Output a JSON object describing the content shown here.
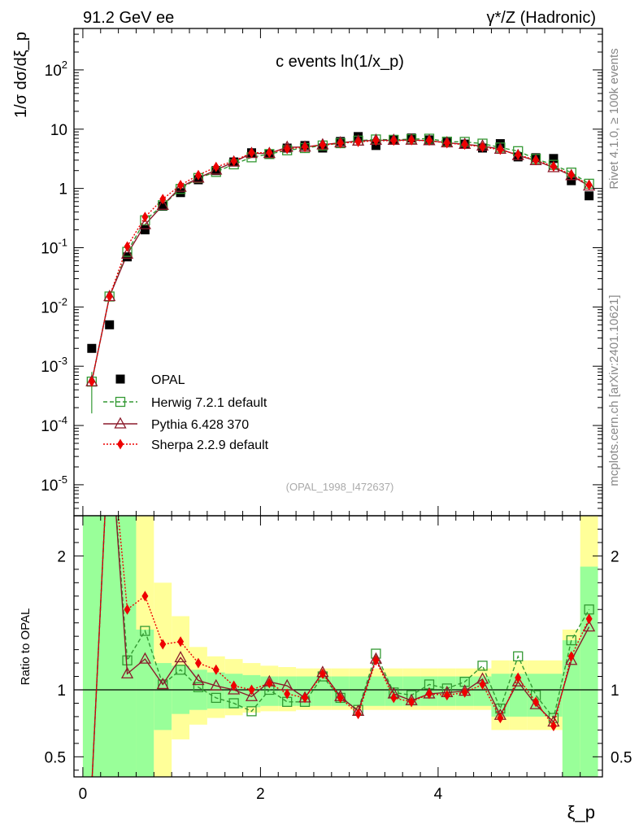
{
  "header": {
    "left": "91.2 GeV ee",
    "right": "γ*/Z (Hadronic)"
  },
  "side_labels": {
    "rivet": "Rivet 4.1.0, ≥ 100k events",
    "mcplots": "mcplots.cern.ch [arXiv:2401.10621]"
  },
  "colors": {
    "data": "#000000",
    "herwig": "#339933",
    "pythia": "#8b1a2b",
    "sherpa": "#ee0000",
    "band_inner": "#99ff99",
    "band_outer": "#ffff99"
  },
  "chart_data": [
    {
      "type": "scatter",
      "title": "c events ln(1/x_p)",
      "ylabel": "1/σ dσ/dξ_p",
      "xlabel": "ξ_p",
      "yscale": "log",
      "xlim": [
        -0.1,
        5.85
      ],
      "ylim": [
        3e-06,
        500
      ],
      "x_ticks": [
        0,
        2,
        4
      ],
      "y_ticks": [
        {
          "value": 1e-05,
          "label": "10^-5"
        },
        {
          "value": 0.0001,
          "label": "10^-4"
        },
        {
          "value": 0.001,
          "label": "10^-3"
        },
        {
          "value": 0.01,
          "label": "10^-2"
        },
        {
          "value": 0.1,
          "label": "10^-1"
        },
        {
          "value": 1,
          "label": "1"
        },
        {
          "value": 10,
          "label": "10"
        },
        {
          "value": 100,
          "label": "10^2"
        }
      ],
      "x": [
        0.1,
        0.3,
        0.5,
        0.7,
        0.9,
        1.1,
        1.3,
        1.5,
        1.7,
        1.9,
        2.1,
        2.3,
        2.5,
        2.7,
        2.9,
        3.1,
        3.3,
        3.5,
        3.7,
        3.9,
        4.1,
        4.3,
        4.5,
        4.7,
        4.9,
        5.1,
        5.3,
        5.5,
        5.7
      ],
      "series": [
        {
          "name": "OPAL",
          "style": "filled-square",
          "values": [
            0.002,
            0.005,
            0.07,
            0.2,
            0.5,
            0.85,
            1.4,
            2.0,
            2.8,
            4.0,
            3.8,
            4.8,
            5.3,
            4.8,
            6.2,
            7.5,
            5.3,
            6.7,
            7.1,
            6.6,
            6.0,
            5.6,
            4.8,
            5.7,
            3.4,
            3.3,
            3.2,
            1.35,
            0.75
          ]
        },
        {
          "name": "Herwig 7.2.1 default",
          "style": "open-square dashed",
          "values": [
            0.00055,
            0.015,
            0.085,
            0.29,
            0.52,
            0.98,
            1.5,
            1.9,
            2.55,
            3.35,
            3.8,
            4.4,
            4.8,
            5.3,
            5.8,
            6.4,
            6.7,
            6.6,
            6.8,
            6.9,
            6.15,
            6.1,
            5.7,
            4.9,
            4.25,
            3.15,
            2.5,
            1.85,
            1.2
          ]
        },
        {
          "name": "Pythia 6.428 370",
          "style": "open-triangle solid",
          "values": [
            0.00055,
            0.015,
            0.078,
            0.245,
            0.52,
            1.05,
            1.5,
            2.05,
            2.8,
            3.9,
            3.9,
            4.95,
            5.0,
            5.45,
            5.9,
            6.3,
            6.5,
            6.5,
            6.55,
            6.4,
            5.9,
            5.55,
            5.2,
            4.6,
            3.6,
            2.95,
            2.25,
            1.65,
            1.1
          ]
        },
        {
          "name": "Sherpa 2.2.9 default",
          "style": "filled-diamond dotted",
          "values": [
            0.00055,
            0.015,
            0.105,
            0.33,
            0.66,
            1.14,
            1.68,
            2.3,
            2.9,
            4.0,
            4.0,
            4.65,
            5.0,
            5.4,
            5.8,
            6.1,
            6.4,
            6.4,
            6.5,
            6.4,
            5.8,
            5.5,
            5.0,
            4.5,
            3.7,
            3.0,
            2.35,
            1.7,
            1.15
          ]
        }
      ],
      "annotation": "(OPAL_1998_I472637)"
    },
    {
      "type": "line",
      "ylabel": "Ratio to OPAL",
      "xlabel": "ξ_p",
      "xlim": [
        -0.1,
        5.85
      ],
      "ylim": [
        0.35,
        2.3
      ],
      "y_ticks": [
        {
          "value": 0.5,
          "label": "0.5"
        },
        {
          "value": 1,
          "label": "1"
        },
        {
          "value": 2,
          "label": "2"
        }
      ],
      "x_ticks": [
        {
          "value": 0,
          "label": "0"
        },
        {
          "value": 2,
          "label": "2"
        },
        {
          "value": 4,
          "label": "4"
        }
      ],
      "x": [
        0.1,
        0.3,
        0.5,
        0.7,
        0.9,
        1.1,
        1.3,
        1.5,
        1.7,
        1.9,
        2.1,
        2.3,
        2.5,
        2.7,
        2.9,
        3.1,
        3.3,
        3.5,
        3.7,
        3.9,
        4.1,
        4.3,
        4.5,
        4.7,
        4.9,
        5.1,
        5.3,
        5.5,
        5.7
      ],
      "series": [
        {
          "name": "Herwig 7.2.1 default",
          "values": [
            0.28,
            3.0,
            1.22,
            1.44,
            1.04,
            1.15,
            1.02,
            0.94,
            0.9,
            0.84,
            1.0,
            0.91,
            0.91,
            1.1,
            0.94,
            0.85,
            1.27,
            0.98,
            0.96,
            1.04,
            1.01,
            1.06,
            1.18,
            0.86,
            1.25,
            0.96,
            0.79,
            1.37,
            1.6
          ]
        },
        {
          "name": "Pythia 6.428 370",
          "values": [
            0.28,
            3.0,
            1.12,
            1.23,
            1.04,
            1.24,
            1.07,
            1.03,
            1.0,
            0.95,
            1.06,
            1.03,
            0.94,
            1.13,
            0.95,
            0.84,
            1.23,
            0.97,
            0.92,
            0.97,
            0.98,
            0.99,
            1.08,
            0.81,
            1.06,
            0.89,
            0.76,
            1.22,
            1.47
          ]
        },
        {
          "name": "Sherpa 2.2.9 default",
          "values": [
            0.28,
            3.0,
            1.6,
            1.7,
            1.34,
            1.36,
            1.2,
            1.15,
            1.03,
            1.0,
            1.05,
            0.97,
            0.94,
            1.12,
            0.94,
            0.82,
            1.22,
            0.94,
            0.91,
            0.97,
            0.96,
            0.98,
            1.04,
            0.79,
            1.09,
            0.91,
            0.73,
            1.25,
            1.53
          ]
        }
      ],
      "band_edges": [
        0,
        0.6,
        0.8,
        1.0,
        1.2,
        1.4,
        1.6,
        1.8,
        2.0,
        2.2,
        2.4,
        2.6,
        2.8,
        3.0,
        3.2,
        3.4,
        3.6,
        3.8,
        4.0,
        4.2,
        4.4,
        4.6,
        4.8,
        5.0,
        5.2,
        5.4,
        5.6,
        5.8
      ],
      "band_inner": [
        [
          0.35,
          2.3
        ],
        [
          0.35,
          1.45
        ],
        [
          0.7,
          1.2
        ],
        [
          0.82,
          1.18
        ],
        [
          0.85,
          1.15
        ],
        [
          0.86,
          1.13
        ],
        [
          0.86,
          1.12
        ],
        [
          0.87,
          1.11
        ],
        [
          0.88,
          1.1
        ],
        [
          0.88,
          1.1
        ],
        [
          0.88,
          1.1
        ],
        [
          0.88,
          1.1
        ],
        [
          0.88,
          1.1
        ],
        [
          0.88,
          1.1
        ],
        [
          0.88,
          1.1
        ],
        [
          0.88,
          1.1
        ],
        [
          0.88,
          1.1
        ],
        [
          0.88,
          1.1
        ],
        [
          0.88,
          1.1
        ],
        [
          0.88,
          1.1
        ],
        [
          0.88,
          1.1
        ],
        [
          0.8,
          1.12
        ],
        [
          0.8,
          1.12
        ],
        [
          0.8,
          1.12
        ],
        [
          0.8,
          1.12
        ],
        [
          0.35,
          1.37
        ],
        [
          0.35,
          1.92
        ]
      ],
      "band_outer": [
        [
          0.35,
          2.3
        ],
        [
          0.35,
          2.3
        ],
        [
          0.35,
          1.8
        ],
        [
          0.63,
          1.55
        ],
        [
          0.74,
          1.32
        ],
        [
          0.79,
          1.25
        ],
        [
          0.81,
          1.23
        ],
        [
          0.83,
          1.2
        ],
        [
          0.84,
          1.18
        ],
        [
          0.84,
          1.17
        ],
        [
          0.85,
          1.16
        ],
        [
          0.85,
          1.16
        ],
        [
          0.85,
          1.16
        ],
        [
          0.85,
          1.16
        ],
        [
          0.85,
          1.16
        ],
        [
          0.85,
          1.16
        ],
        [
          0.85,
          1.16
        ],
        [
          0.85,
          1.16
        ],
        [
          0.85,
          1.16
        ],
        [
          0.85,
          1.16
        ],
        [
          0.85,
          1.16
        ],
        [
          0.7,
          1.22
        ],
        [
          0.7,
          1.22
        ],
        [
          0.7,
          1.22
        ],
        [
          0.7,
          1.22
        ],
        [
          0.35,
          1.45
        ],
        [
          0.35,
          2.3
        ]
      ]
    }
  ]
}
